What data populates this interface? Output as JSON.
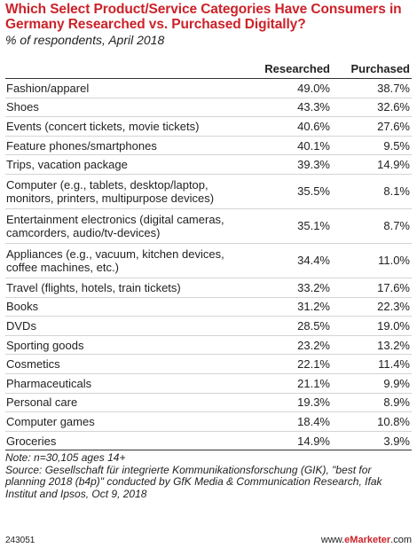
{
  "chart_data": {
    "type": "table",
    "title": "Which Select Product/Service Categories Have Consumers in Germany Researched vs. Purchased Digitally?",
    "subtitle": "% of respondents, April 2018",
    "columns": [
      "Researched",
      "Purchased"
    ],
    "rows": [
      {
        "category": "Fashion/apparel",
        "researched": "49.0%",
        "purchased": "38.7%"
      },
      {
        "category": "Shoes",
        "researched": "43.3%",
        "purchased": "32.6%"
      },
      {
        "category": "Events (concert tickets, movie tickets)",
        "researched": "40.6%",
        "purchased": "27.6%"
      },
      {
        "category": "Feature phones/smartphones",
        "researched": "40.1%",
        "purchased": "9.5%"
      },
      {
        "category": "Trips, vacation package",
        "researched": "39.3%",
        "purchased": "14.9%"
      },
      {
        "category": "Computer (e.g., tablets, desktop/laptop, monitors, printers, multipurpose devices)",
        "researched": "35.5%",
        "purchased": "8.1%"
      },
      {
        "category": "Entertainment electronics (digital cameras, camcorders, audio/tv-devices)",
        "researched": "35.1%",
        "purchased": "8.7%"
      },
      {
        "category": "Appliances (e.g., vacuum, kitchen devices, coffee machines, etc.)",
        "researched": "34.4%",
        "purchased": "11.0%"
      },
      {
        "category": "Travel (flights, hotels, train tickets)",
        "researched": "33.2%",
        "purchased": "17.6%"
      },
      {
        "category": "Books",
        "researched": "31.2%",
        "purchased": "22.3%"
      },
      {
        "category": "DVDs",
        "researched": "28.5%",
        "purchased": "19.0%"
      },
      {
        "category": "Sporting goods",
        "researched": "23.2%",
        "purchased": "13.2%"
      },
      {
        "category": "Cosmetics",
        "researched": "22.1%",
        "purchased": "11.4%"
      },
      {
        "category": "Pharmaceuticals",
        "researched": "21.1%",
        "purchased": "9.9%"
      },
      {
        "category": "Personal care",
        "researched": "19.3%",
        "purchased": "8.9%"
      },
      {
        "category": "Computer games",
        "researched": "18.4%",
        "purchased": "10.8%"
      },
      {
        "category": "Groceries",
        "researched": "14.9%",
        "purchased": "3.9%"
      }
    ],
    "note": "Note: n=30,105 ages 14+",
    "source": "Source: Gesellschaft für integrierte Kommunikationsforschung (GIK), \"best for planning 2018 (b4p)\" conducted by GfK Media & Communication Research, Ifak Institut and Ipsos, Oct 9, 2018"
  },
  "footer": {
    "chart_id": "243051",
    "brand_prefix": "www.",
    "brand_name": "eMarketer",
    "brand_suffix": ".com"
  },
  "colors": {
    "title": "#cc2229",
    "text": "#222222",
    "rule": "#d4d4d4"
  }
}
